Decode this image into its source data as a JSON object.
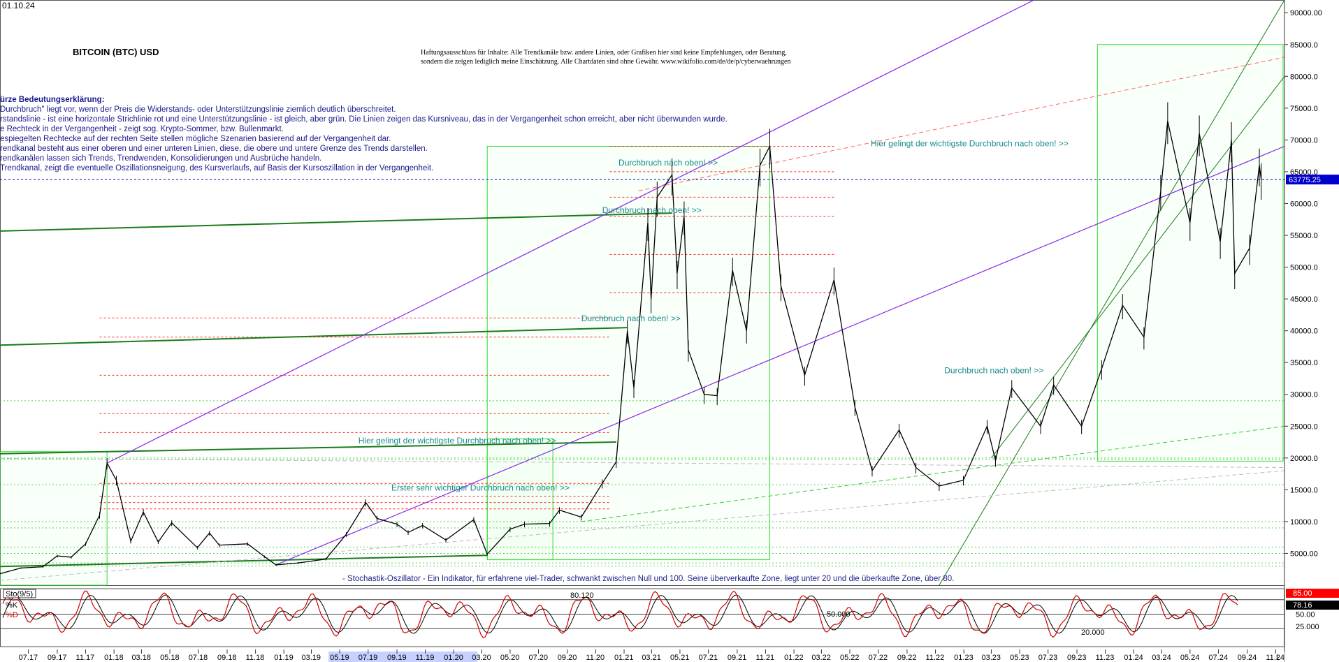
{
  "header": {
    "date": "01.10.24",
    "title": "BITCOIN (BTC) USD",
    "disclaimer_lines": [
      "Haftungsausschluss für Inhalte: Alle Trendkanäle bzw. andere Linien, oder Grafiken hier sind keine Empfehlungen, oder Beratung,",
      "sondern die zeigen lediglich meine  Einschätzung. Alle Chartdaten sind ohne Gewähr.  www.wikifolio.com/de/de/p/cyberwaehrungen"
    ]
  },
  "legend": {
    "heading": "ürze Bedeutungserklärung:",
    "lines": [
      "Durchbruch\" liegt vor, wenn der Preis die Widerstands- oder Unterstützungslinie ziemlich deutlich überschreitet.",
      "rstandslinie - ist eine horizontale Strichlinie rot und eine Unterstützungslinie - ist gleich, aber grün. Die Linien zeigen das Kursniveau, das in der Vergangenheit schon erreicht, aber nicht überwunden wurde.",
      "e Rechteck in der Vergangenheit - zeigt sog. Krypto-Sommer, bzw. Bullenmarkt.",
      "espiegelten Rechtecke auf der rechten Seite stellen mögliche Szenarien basierend auf der Vergangenheit dar.",
      "rendkanal besteht aus einer oberen und einer unteren Linien, diese, die obere und untere Grenze des Trends darstellen.",
      "rendkanälen lassen sich Trends, Trendwenden, Konsolidierungen und Ausbrüche handeln.",
      "Trendkanal, zeigt die eventuelle Oszillationsneigung, des Kursverlaufs, auf Basis der Kursoszillation in der Vergangenheit."
    ]
  },
  "annotations": [
    {
      "text": "Durchbruch nach oben! >>",
      "date": "2020-12-20",
      "price": 66000
    },
    {
      "text": "Durchbruch nach oben! >>",
      "date": "2020-11-15",
      "price": 58500
    },
    {
      "text": "Durchbruch nach oben! >>",
      "date": "2020-10-01",
      "price": 41500
    },
    {
      "text": "Hier gelingt der wichtigste Durchbruch nach oben! >>",
      "date": "2019-06-10",
      "price": 22300
    },
    {
      "text": "Erster sehr wichtiger Durchbruch nach oben! >>",
      "date": "2019-08-20",
      "price": 14900
    },
    {
      "text": "Hier gelingt der wichtigste Durchbruch nach oben! >>",
      "date": "2022-06-15",
      "price": 69000
    },
    {
      "text": "Durchbruch nach oben! >>",
      "date": "2022-11-20",
      "price": 33300
    }
  ],
  "oscillator_note": "- Stochastik-Oszillator - Ein Indikator, für erfahrene viel-Trader, schwankt zwischen Null und 100. Seine überverkaufte Zone, liegt unter 20 und die überkaufte Zone, über 80.",
  "price_marker": {
    "label": "63775.25",
    "value": 63775.25,
    "color": "#0000cc"
  },
  "chart_data": {
    "type": "line",
    "title": "BITCOIN (BTC) USD",
    "xlabel": "",
    "ylabel": "",
    "ylim": [
      0,
      92000
    ],
    "y_ticks": [
      "5000.00",
      "10000.0",
      "15000.0",
      "20000.0",
      "25000.0",
      "30000.0",
      "35000.0",
      "40000.0",
      "45000.0",
      "50000.0",
      "55000.0",
      "60000.0",
      "65000.0",
      "70000.0",
      "75000.0",
      "80000.0",
      "85000.0",
      "90000.00"
    ],
    "x_ticks": [
      "07.17",
      "09.17",
      "11.17",
      "01.18",
      "03.18",
      "05.18",
      "07.18",
      "09.18",
      "11.18",
      "01.19",
      "03.19",
      "05.19",
      "07.19",
      "09.19",
      "11.19",
      "01.20",
      "03.20",
      "05.20",
      "07.20",
      "09.20",
      "11.20",
      "01.21",
      "03.21",
      "05.21",
      "07.21",
      "09.21",
      "11.21",
      "01.22",
      "03.22",
      "05.22",
      "07.22",
      "09.22",
      "11.22",
      "01.23",
      "03.23",
      "05.23",
      "07.23",
      "09.23",
      "11.23",
      "01.24",
      "03.24",
      "05.24",
      "07.24",
      "09.24",
      "11.24"
    ],
    "x_tick_end": "L",
    "series": [
      {
        "values": [
          {
            "x": "2017-05-01",
            "y": 1800
          },
          {
            "x": "2017-06-15",
            "y": 2700
          },
          {
            "x": "2017-08-01",
            "y": 2900
          },
          {
            "x": "2017-09-01",
            "y": 4600
          },
          {
            "x": "2017-10-01",
            "y": 4400
          },
          {
            "x": "2017-11-01",
            "y": 6500
          },
          {
            "x": "2017-12-01",
            "y": 11000
          },
          {
            "x": "2017-12-17",
            "y": 19200
          },
          {
            "x": "2018-01-06",
            "y": 16500
          },
          {
            "x": "2018-02-06",
            "y": 6900
          },
          {
            "x": "2018-03-05",
            "y": 11500
          },
          {
            "x": "2018-04-06",
            "y": 6800
          },
          {
            "x": "2018-05-05",
            "y": 9800
          },
          {
            "x": "2018-06-29",
            "y": 5900
          },
          {
            "x": "2018-07-25",
            "y": 8200
          },
          {
            "x": "2018-08-15",
            "y": 6300
          },
          {
            "x": "2018-10-15",
            "y": 6500
          },
          {
            "x": "2018-11-20",
            "y": 4500
          },
          {
            "x": "2018-12-15",
            "y": 3200
          },
          {
            "x": "2019-02-01",
            "y": 3500
          },
          {
            "x": "2019-04-01",
            "y": 4100
          },
          {
            "x": "2019-05-15",
            "y": 8000
          },
          {
            "x": "2019-06-26",
            "y": 13000
          },
          {
            "x": "2019-07-20",
            "y": 10500
          },
          {
            "x": "2019-09-01",
            "y": 9600
          },
          {
            "x": "2019-09-25",
            "y": 8300
          },
          {
            "x": "2019-10-26",
            "y": 9400
          },
          {
            "x": "2019-12-15",
            "y": 7100
          },
          {
            "x": "2020-02-13",
            "y": 10300
          },
          {
            "x": "2020-03-13",
            "y": 4900
          },
          {
            "x": "2020-05-01",
            "y": 8800
          },
          {
            "x": "2020-06-01",
            "y": 9600
          },
          {
            "x": "2020-07-25",
            "y": 9700
          },
          {
            "x": "2020-08-15",
            "y": 11800
          },
          {
            "x": "2020-10-01",
            "y": 10700
          },
          {
            "x": "2020-11-15",
            "y": 16000
          },
          {
            "x": "2020-12-15",
            "y": 19400
          },
          {
            "x": "2021-01-08",
            "y": 40000
          },
          {
            "x": "2021-01-22",
            "y": 31000
          },
          {
            "x": "2021-02-21",
            "y": 57000
          },
          {
            "x": "2021-02-28",
            "y": 45000
          },
          {
            "x": "2021-03-13",
            "y": 61000
          },
          {
            "x": "2021-04-14",
            "y": 64500
          },
          {
            "x": "2021-04-25",
            "y": 49000
          },
          {
            "x": "2021-05-10",
            "y": 58000
          },
          {
            "x": "2021-05-19",
            "y": 37000
          },
          {
            "x": "2021-06-22",
            "y": 30000
          },
          {
            "x": "2021-07-20",
            "y": 29800
          },
          {
            "x": "2021-08-22",
            "y": 49500
          },
          {
            "x": "2021-09-21",
            "y": 40000
          },
          {
            "x": "2021-10-20",
            "y": 66000
          },
          {
            "x": "2021-11-10",
            "y": 69000
          },
          {
            "x": "2021-12-04",
            "y": 47000
          },
          {
            "x": "2022-01-24",
            "y": 33000
          },
          {
            "x": "2022-03-28",
            "y": 48000
          },
          {
            "x": "2022-05-12",
            "y": 28000
          },
          {
            "x": "2022-06-18",
            "y": 18000
          },
          {
            "x": "2022-08-15",
            "y": 24400
          },
          {
            "x": "2022-09-20",
            "y": 18500
          },
          {
            "x": "2022-11-09",
            "y": 15600
          },
          {
            "x": "2022-12-31",
            "y": 16500
          },
          {
            "x": "2023-02-20",
            "y": 25000
          },
          {
            "x": "2023-03-10",
            "y": 19600
          },
          {
            "x": "2023-04-14",
            "y": 31000
          },
          {
            "x": "2023-06-15",
            "y": 25000
          },
          {
            "x": "2023-07-13",
            "y": 31500
          },
          {
            "x": "2023-09-11",
            "y": 25000
          },
          {
            "x": "2023-10-24",
            "y": 34000
          },
          {
            "x": "2023-12-08",
            "y": 44000
          },
          {
            "x": "2024-01-23",
            "y": 39000
          },
          {
            "x": "2024-02-28",
            "y": 62000
          },
          {
            "x": "2024-03-14",
            "y": 73000
          },
          {
            "x": "2024-05-01",
            "y": 57000
          },
          {
            "x": "2024-05-21",
            "y": 71000
          },
          {
            "x": "2024-07-05",
            "y": 54000
          },
          {
            "x": "2024-07-29",
            "y": 70000
          },
          {
            "x": "2024-08-05",
            "y": 49000
          },
          {
            "x": "2024-09-06",
            "y": 53000
          },
          {
            "x": "2024-09-27",
            "y": 66000
          },
          {
            "x": "2024-10-01",
            "y": 63775
          }
        ]
      }
    ],
    "resistance_levels": [
      69000,
      65000,
      61000,
      58000,
      52000,
      46000,
      42000,
      39000,
      33000,
      27000,
      24000,
      16000,
      14000,
      13000,
      12000
    ],
    "support_levels": [
      29000,
      20000,
      19800,
      15800,
      10000,
      9000,
      6000,
      5000,
      3500,
      3000
    ]
  },
  "oscillator": {
    "label": "Sto(9/5)",
    "k_label": "%K",
    "d_label": "%D",
    "k_value": "85.00",
    "d_value": "78.16",
    "ylim": [
      0,
      100
    ],
    "y_ticks": [
      "50.00",
      "25.000"
    ],
    "annotations": [
      "80.120",
      "50.000",
      "20.000"
    ],
    "guide_levels": [
      20,
      50,
      80
    ]
  },
  "colors": {
    "price": "#000000",
    "resistance": "#ff0000",
    "support": "#22cc22",
    "channel_green": "#1a7a1a",
    "channel_violet": "#8822ee",
    "box": "#33dd33",
    "annotation": "#1a8a8a",
    "oscillator_k": "#cc0000",
    "oscillator_d": "#000000",
    "axis_bg": "#ffffff",
    "x_axis_highlight": "#c8d0ff"
  }
}
